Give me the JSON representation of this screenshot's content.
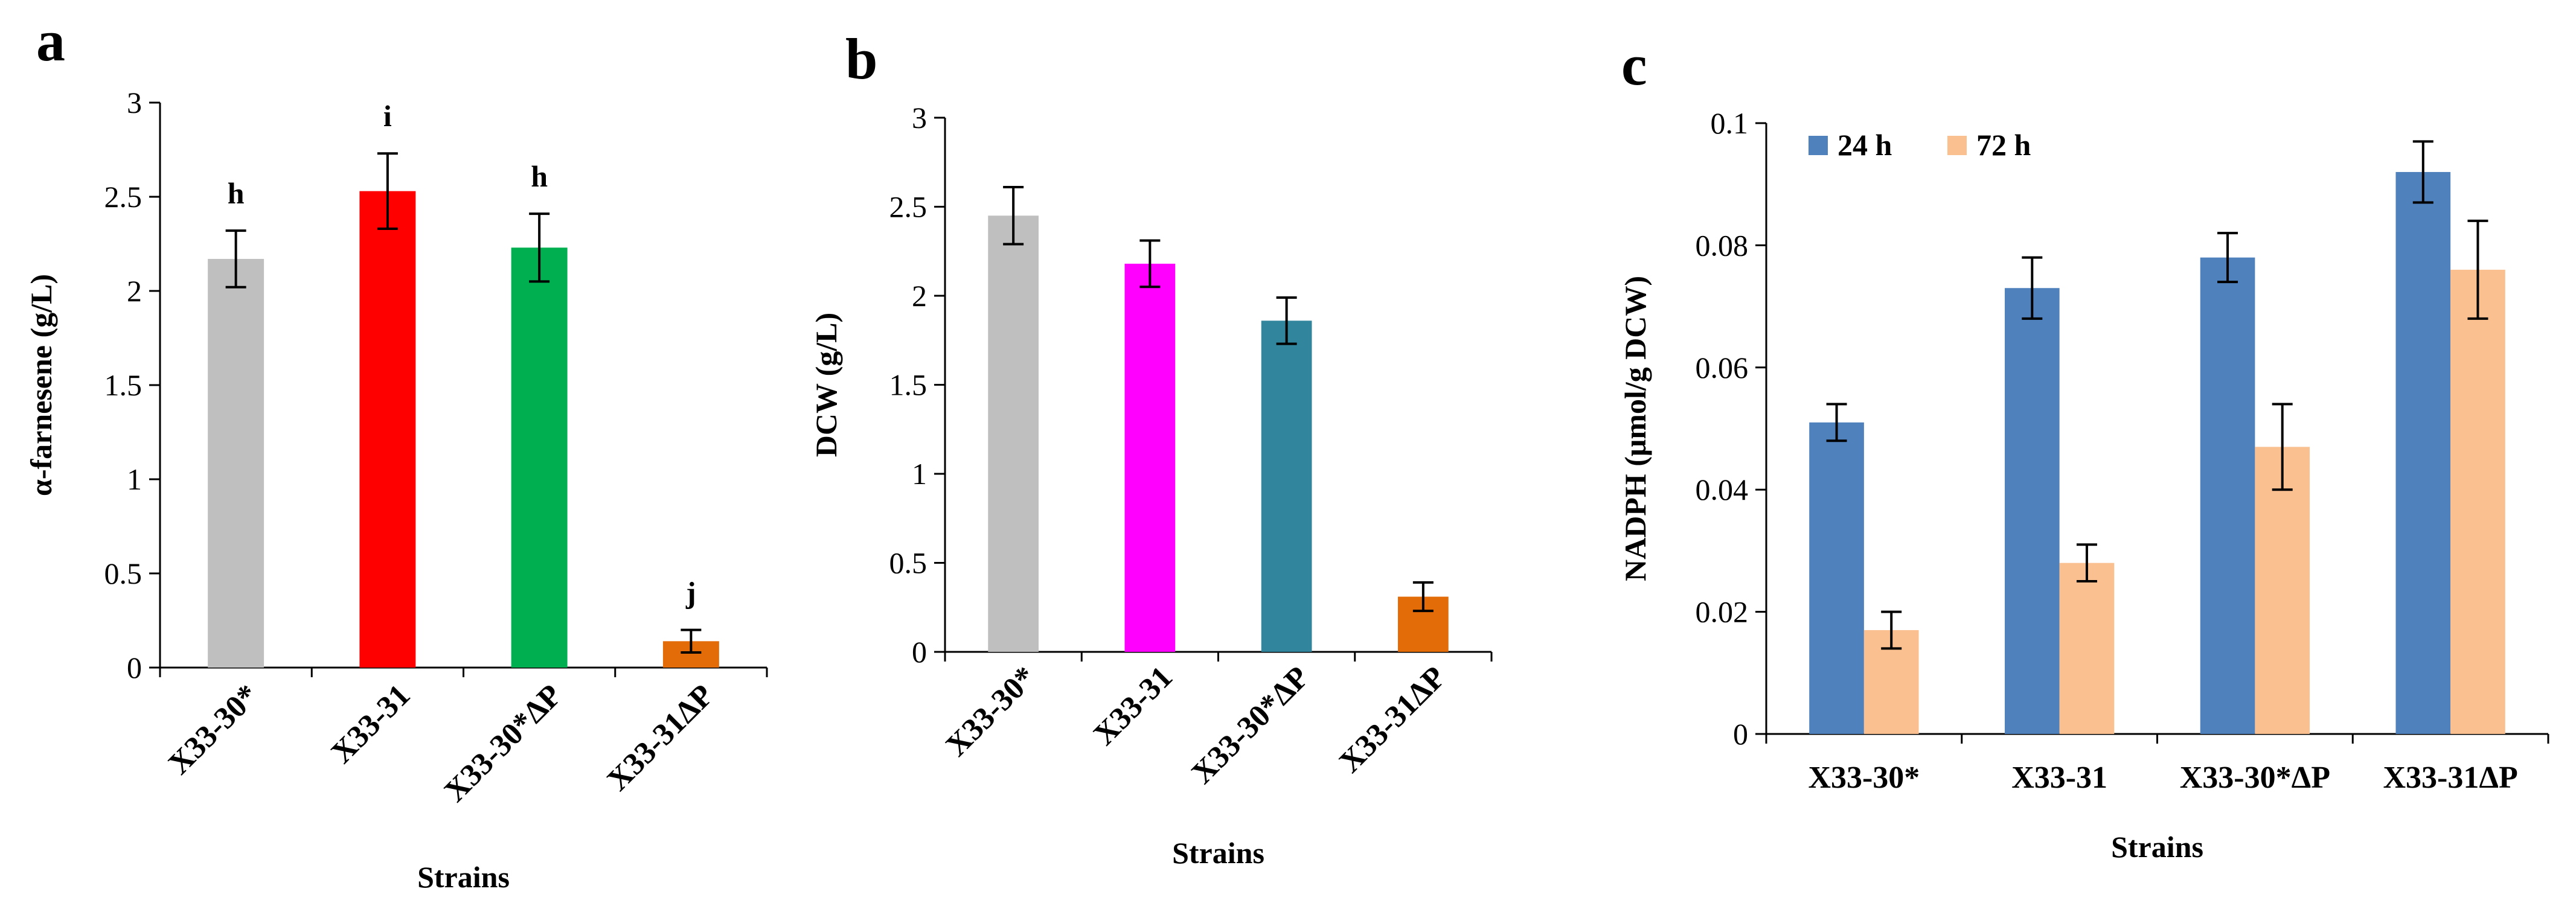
{
  "chart_data": [
    {
      "panel": "a",
      "type": "bar",
      "title": "",
      "xlabel": "Strains",
      "ylabel": "α-farnesene (g/L)",
      "ylim": [
        0,
        3
      ],
      "yticks": [
        "0",
        "0.5",
        "1",
        "1.5",
        "2",
        "2.5",
        "3"
      ],
      "categories": [
        "X33-30*",
        "X33-31",
        "X33-30*ΔP",
        "X33-31ΔP"
      ],
      "values": [
        2.17,
        2.53,
        2.23,
        0.14
      ],
      "errors": [
        0.15,
        0.2,
        0.18,
        0.06
      ],
      "colors": [
        "#bfbfbf",
        "#ff0000",
        "#00b050",
        "#e36c09"
      ],
      "significance": [
        "h",
        "i",
        "h",
        "j"
      ]
    },
    {
      "panel": "b",
      "type": "bar",
      "title": "",
      "xlabel": "Strains",
      "ylabel": "DCW (g/L)",
      "ylim": [
        0,
        3
      ],
      "yticks": [
        "0",
        "0.5",
        "1",
        "1.5",
        "2",
        "2.5",
        "3"
      ],
      "categories": [
        "X33-30*",
        "X33-31",
        "X33-30*ΔP",
        "X33-31ΔP"
      ],
      "values": [
        2.45,
        2.18,
        1.86,
        0.31
      ],
      "errors": [
        0.16,
        0.13,
        0.13,
        0.08
      ],
      "colors": [
        "#bfbfbf",
        "#ff00ff",
        "#31859c",
        "#e36c09"
      ]
    },
    {
      "panel": "c",
      "type": "bar",
      "title": "",
      "xlabel": "Strains",
      "ylabel": "NADPH (μmol/g DCW)",
      "ylim": [
        0,
        0.1
      ],
      "yticks": [
        "0",
        "0.02",
        "0.04",
        "0.06",
        "0.08",
        "0.1"
      ],
      "categories": [
        "X33-30*",
        "X33-31",
        "X33-30*ΔP",
        "X33-31ΔP"
      ],
      "series": [
        {
          "name": "24 h",
          "color": "#4f81bd",
          "values": [
            0.051,
            0.073,
            0.078,
            0.092
          ],
          "errors": [
            0.003,
            0.005,
            0.004,
            0.005
          ]
        },
        {
          "name": "72 h",
          "color": "#fac090",
          "values": [
            0.017,
            0.028,
            0.047,
            0.076
          ],
          "errors": [
            0.003,
            0.003,
            0.007,
            0.008
          ]
        }
      ],
      "legend_position": "top-left"
    }
  ]
}
